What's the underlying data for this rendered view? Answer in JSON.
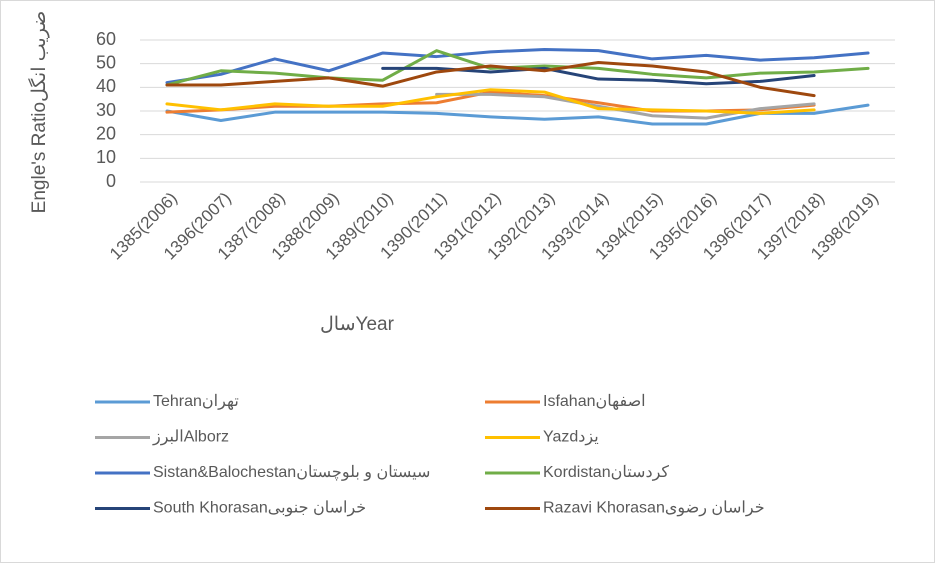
{
  "chart_data": {
    "type": "line",
    "x_label": "سالYear",
    "y_label": "Engle's Ratioضریب انگل",
    "categories": [
      "1385(2006)",
      "1396(2007)",
      "1387(2008)",
      "1388(2009)",
      "1389(2010)",
      "1390(2011)",
      "1391(2012)",
      "1392(2013)",
      "1393(2014)",
      "1394(2015)",
      "1395(2016)",
      "1396(2017)",
      "1397(2018)",
      "1398(2019)"
    ],
    "ylim": [
      0,
      60
    ],
    "yticks": [
      0,
      10,
      20,
      30,
      40,
      50,
      60
    ],
    "grid": true,
    "series": [
      {
        "name": "Tehranتهران",
        "color": "#5b9bd5",
        "values": [
          30,
          26,
          29.5,
          29.5,
          29.5,
          29,
          27.5,
          26.5,
          27.5,
          24.5,
          24.5,
          29,
          29,
          32.5
        ]
      },
      {
        "name": "Isfahanاصفهان",
        "color": "#ed7d31",
        "values": [
          29.5,
          30.5,
          32,
          32,
          33,
          33.5,
          38,
          36.5,
          33.5,
          30,
          30,
          30.5,
          32.5,
          null
        ]
      },
      {
        "name": "البرزAlborz",
        "color": "#a5a5a5",
        "values": [
          null,
          null,
          null,
          null,
          null,
          37,
          37,
          36,
          32,
          28,
          27,
          31,
          33,
          null
        ]
      },
      {
        "name": "Yazdیزد",
        "color": "#ffc000",
        "values": [
          33,
          30.5,
          33,
          32,
          32,
          36,
          39,
          38,
          31,
          30.5,
          30,
          29,
          30.5,
          null
        ]
      },
      {
        "name": "Sistan&Balochestanسیستان و بلوچستان",
        "color": "#4472c4",
        "values": [
          42,
          45.5,
          52,
          47,
          54.5,
          53,
          55,
          56,
          55.5,
          52,
          53.5,
          51.5,
          52.5,
          54.5
        ]
      },
      {
        "name": "Kordistanکردستان",
        "color": "#70ad47",
        "values": [
          41,
          47,
          46,
          44,
          43,
          55.5,
          48,
          49,
          48,
          45.5,
          44,
          46,
          46.5,
          48
        ]
      },
      {
        "name": "South Khorasanخراسان جنوبی",
        "color": "#264478",
        "values": [
          null,
          null,
          null,
          null,
          48,
          48,
          46.5,
          48,
          43.5,
          43,
          41.5,
          42.5,
          45,
          null
        ]
      },
      {
        "name": "Razavi Khorasanخراسان رضوی",
        "color": "#9e480e",
        "values": [
          41,
          41,
          42.5,
          44,
          40.5,
          46.5,
          49,
          47,
          50.5,
          49,
          46.5,
          40,
          36.5,
          null
        ]
      }
    ]
  }
}
